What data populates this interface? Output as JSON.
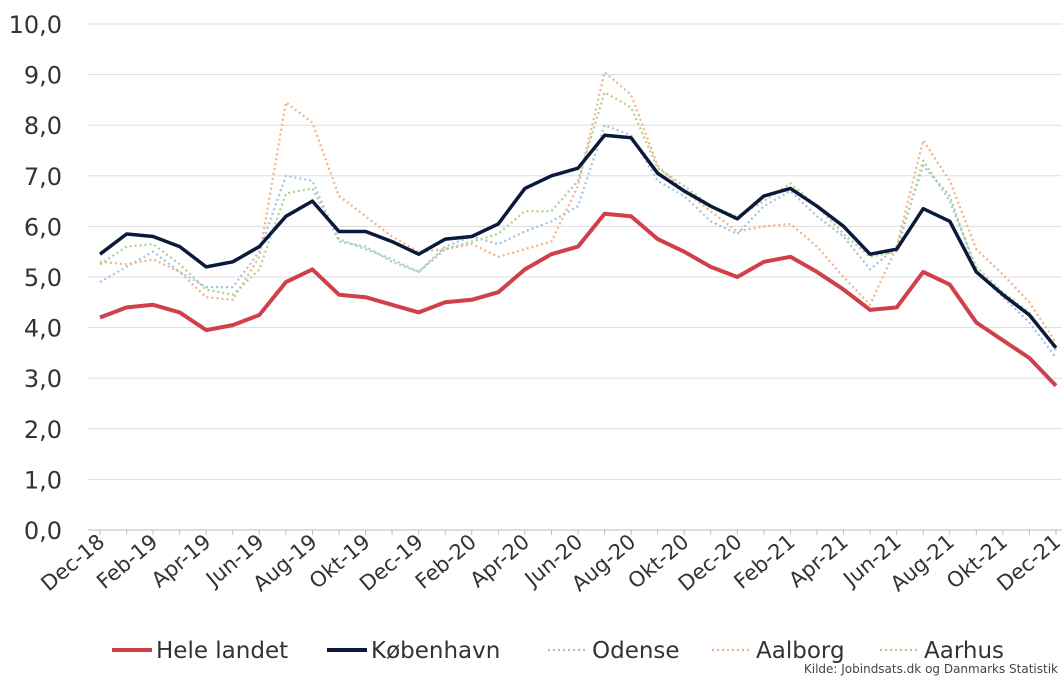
{
  "chart_data": {
    "type": "line",
    "categories": [
      "Dec-18",
      null,
      "Feb-19",
      null,
      "Apr-19",
      null,
      "Jun-19",
      null,
      "Aug-19",
      null,
      "Okt-19",
      null,
      "Dec-19",
      null,
      "Feb-20",
      null,
      "Apr-20",
      null,
      "Jun-20",
      null,
      "Aug-20",
      null,
      "Okt-20",
      null,
      "Dec-20",
      null,
      "Feb-21",
      null,
      "Apr-21",
      null,
      "Jun-21",
      null,
      "Aug-21",
      null,
      "Okt-21",
      null,
      "Dec-21"
    ],
    "series": [
      {
        "name": "Hele landet",
        "color": "#d0404a",
        "style": "solid",
        "values": [
          4.2,
          4.4,
          4.45,
          4.3,
          3.95,
          4.05,
          4.25,
          4.9,
          5.15,
          4.65,
          4.6,
          4.45,
          4.3,
          4.5,
          4.55,
          4.7,
          5.15,
          5.45,
          5.6,
          6.25,
          6.2,
          5.75,
          5.5,
          5.2,
          5.0,
          5.3,
          5.4,
          5.1,
          4.75,
          4.35,
          4.4,
          5.1,
          4.85,
          4.1,
          3.75,
          3.4,
          2.85
        ]
      },
      {
        "name": "København",
        "color": "#0b1a3a",
        "style": "solid",
        "values": [
          5.45,
          5.85,
          5.8,
          5.6,
          5.2,
          5.3,
          5.6,
          6.2,
          6.5,
          5.9,
          5.9,
          5.7,
          5.45,
          5.75,
          5.8,
          6.05,
          6.75,
          7.0,
          7.15,
          7.8,
          7.75,
          7.05,
          6.7,
          6.4,
          6.15,
          6.6,
          6.75,
          6.4,
          6.0,
          5.45,
          5.55,
          6.35,
          6.1,
          5.1,
          4.65,
          4.25,
          3.6
        ]
      },
      {
        "name": "Odense",
        "color": "#9fc3e6",
        "style": "dotted",
        "values": [
          4.9,
          5.2,
          5.5,
          5.1,
          4.8,
          4.8,
          5.5,
          7.0,
          6.9,
          5.7,
          5.6,
          5.3,
          5.1,
          5.6,
          5.8,
          5.65,
          5.9,
          6.1,
          6.4,
          8.0,
          7.8,
          6.9,
          6.6,
          6.1,
          5.85,
          6.4,
          6.7,
          6.2,
          5.8,
          5.15,
          5.6,
          7.2,
          6.6,
          5.1,
          4.6,
          4.1,
          3.4
        ]
      },
      {
        "name": "Aalborg",
        "color": "#f4b183",
        "style": "dotted",
        "values": [
          5.3,
          5.25,
          5.35,
          5.1,
          4.6,
          4.55,
          5.4,
          8.45,
          8.05,
          6.6,
          6.2,
          5.8,
          5.5,
          5.55,
          5.65,
          5.4,
          5.55,
          5.7,
          6.8,
          9.05,
          8.6,
          7.2,
          6.7,
          6.3,
          5.9,
          6.0,
          6.05,
          5.6,
          5.0,
          4.45,
          5.6,
          7.7,
          6.9,
          5.55,
          5.05,
          4.5,
          3.7
        ]
      },
      {
        "name": "Aarhus",
        "color": "#a9d18e",
        "style": "dotted",
        "values": [
          5.25,
          5.6,
          5.65,
          5.25,
          4.75,
          4.65,
          5.15,
          6.65,
          6.75,
          5.75,
          5.55,
          5.35,
          5.1,
          5.55,
          5.7,
          5.85,
          6.3,
          6.3,
          6.9,
          8.65,
          8.35,
          7.15,
          6.8,
          6.4,
          6.2,
          6.5,
          6.85,
          6.4,
          5.85,
          5.4,
          5.5,
          7.3,
          6.5,
          5.2,
          4.7,
          4.3,
          3.55
        ]
      }
    ],
    "ylim": [
      0,
      10
    ],
    "yticks": [
      {
        "value": 0,
        "label": "0,0"
      },
      {
        "value": 1,
        "label": "1,0"
      },
      {
        "value": 2,
        "label": "2,0"
      },
      {
        "value": 3,
        "label": "3,0"
      },
      {
        "value": 4,
        "label": "4,0"
      },
      {
        "value": 5,
        "label": "5,0"
      },
      {
        "value": 6,
        "label": "6,0"
      },
      {
        "value": 7,
        "label": "7,0"
      },
      {
        "value": 8,
        "label": "8,0"
      },
      {
        "value": 9,
        "label": "9,0"
      },
      {
        "value": 10,
        "label": "10,0"
      }
    ],
    "grid": true,
    "legend": "bottom",
    "source": "Kilde: Jobindsats.dk og Danmarks Statistik"
  }
}
